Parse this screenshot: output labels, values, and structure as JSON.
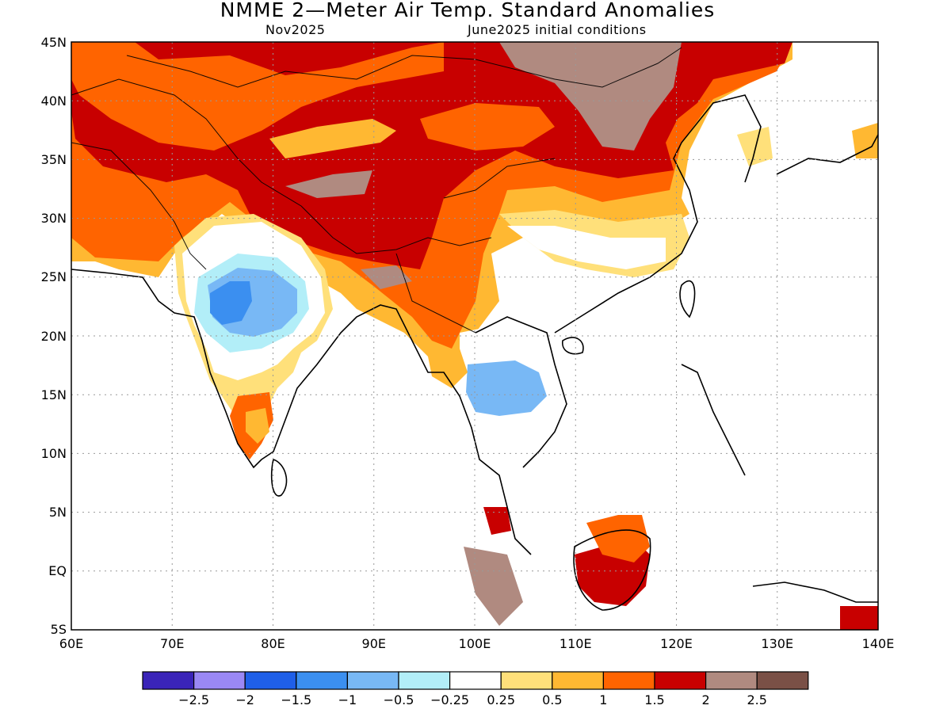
{
  "title": "NMME 2—Meter Air Temp. Standard Anomalies",
  "subtitle_left": "Nov2025",
  "subtitle_right": "June2025 initial conditions",
  "map": {
    "lon_range": [
      60,
      140
    ],
    "lat_range": [
      -5,
      45
    ],
    "lat_labels": [
      "45N",
      "40N",
      "35N",
      "30N",
      "25N",
      "20N",
      "15N",
      "10N",
      "5N",
      "EQ",
      "5S"
    ],
    "lon_labels": [
      "60E",
      "70E",
      "80E",
      "90E",
      "100E",
      "110E",
      "120E",
      "130E",
      "140E"
    ],
    "regions": [
      {
        "level": "1 to 1.5",
        "area": "Central Asia, Iran, Afghanistan, Mongolia"
      },
      {
        "level": "1.5 to 2",
        "area": "Tibetan Plateau, Myanmar, northern China"
      },
      {
        "level": "2 to 2.5",
        "area": "Mongolia, western Tibet, Sumatra"
      },
      {
        "level": "-0.5 to -1",
        "area": "central India"
      },
      {
        "level": "-0.5 to -1",
        "area": "Thailand, Cambodia"
      },
      {
        "level": "1.5 to 2",
        "area": "Borneo"
      }
    ]
  },
  "colorbar": {
    "colors": [
      "#3a24b8",
      "#9a88f5",
      "#1f5fe8",
      "#3b8ff0",
      "#78b8f5",
      "#b2eef8",
      "#ffffff",
      "#ffe07a",
      "#ffb832",
      "#ff6400",
      "#c80000",
      "#b08a80",
      "#7a5046"
    ],
    "labels": [
      "−2.5",
      "−2",
      "−1.5",
      "−1",
      "−0.5",
      "−0.25",
      "0.25",
      "0.5",
      "1",
      "1.5",
      "2",
      "2.5"
    ]
  }
}
